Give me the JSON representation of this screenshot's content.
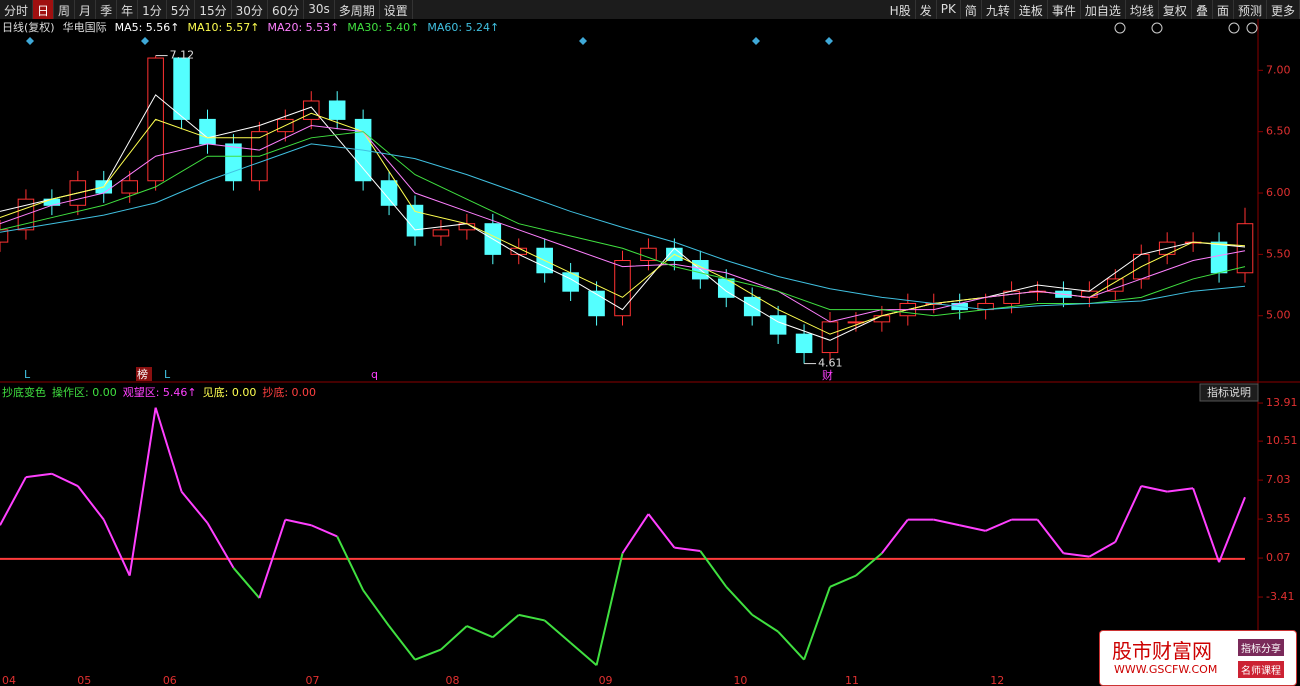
{
  "toolbar": {
    "left": [
      "分时",
      "日",
      "周",
      "月",
      "季",
      "年",
      "1分",
      "5分",
      "15分",
      "30分",
      "60分",
      "30s",
      "多周期",
      "设置"
    ],
    "right": [
      "H股",
      "发",
      "PK",
      "简",
      "九转",
      "连板",
      "事件",
      "加自选",
      "均线",
      "复权",
      "叠",
      "面",
      "预测",
      "更多"
    ]
  },
  "chart_data": [
    {
      "type": "candlestick",
      "period": "日线(复权)",
      "stock": "华电国际",
      "xlim": [
        0,
        48
      ],
      "xticks": [
        {
          "value": 0,
          "label": "04"
        },
        {
          "value": 2.9,
          "label": "05"
        },
        {
          "value": 6.2,
          "label": "06"
        },
        {
          "value": 11.7,
          "label": "07"
        },
        {
          "value": 17.1,
          "label": "08"
        },
        {
          "value": 23,
          "label": "09"
        },
        {
          "value": 28.2,
          "label": "10"
        },
        {
          "value": 32.5,
          "label": "11"
        },
        {
          "value": 38.1,
          "label": "12"
        }
      ],
      "ylim": [
        4.46,
        7.41
      ],
      "yticks": [
        {
          "value": 5,
          "label": "5.00"
        },
        {
          "value": 5.5,
          "label": "5.50"
        },
        {
          "value": 6,
          "label": "6.00"
        },
        {
          "value": 6.5,
          "label": "6.50"
        },
        {
          "value": 7,
          "label": "7.00"
        }
      ],
      "up_color": "#ff3232",
      "down_color": "#54ffff",
      "open": [
        5.6,
        5.7,
        5.95,
        5.9,
        6.1,
        6.0,
        6.1,
        7.1,
        6.6,
        6.4,
        6.1,
        6.5,
        6.6,
        6.75,
        6.6,
        6.1,
        5.9,
        5.65,
        5.7,
        5.75,
        5.5,
        5.55,
        5.35,
        5.2,
        5.0,
        5.45,
        5.55,
        5.45,
        5.3,
        5.15,
        5.0,
        4.85,
        4.7,
        4.95,
        4.95,
        5.0,
        5.1,
        5.1,
        5.05,
        5.1,
        5.2,
        5.2,
        5.15,
        5.2,
        5.3,
        5.5,
        5.6,
        5.6,
        5.35
      ],
      "high": [
        5.78,
        6.03,
        6.03,
        6.18,
        6.18,
        6.18,
        7.12,
        7.1,
        6.68,
        6.48,
        6.58,
        6.68,
        6.83,
        6.83,
        6.68,
        6.18,
        5.98,
        5.78,
        5.83,
        5.83,
        5.63,
        5.63,
        5.43,
        5.28,
        5.53,
        5.63,
        5.63,
        5.53,
        5.38,
        5.23,
        5.08,
        4.93,
        5.03,
        5.03,
        5.08,
        5.18,
        5.18,
        5.18,
        5.18,
        5.28,
        5.28,
        5.28,
        5.28,
        5.38,
        5.58,
        5.68,
        5.68,
        5.68,
        5.88
      ],
      "low": [
        5.52,
        5.62,
        5.82,
        5.82,
        5.92,
        5.92,
        6.02,
        6.52,
        6.32,
        6.02,
        6.02,
        6.42,
        6.52,
        6.52,
        6.02,
        5.82,
        5.57,
        5.57,
        5.62,
        5.42,
        5.42,
        5.27,
        5.12,
        4.92,
        4.92,
        5.37,
        5.37,
        5.22,
        5.07,
        4.92,
        4.77,
        4.61,
        4.62,
        4.87,
        4.87,
        4.92,
        5.02,
        4.97,
        4.97,
        5.02,
        5.12,
        5.07,
        5.07,
        5.12,
        5.22,
        5.42,
        5.52,
        5.27,
        5.27
      ],
      "close": [
        5.7,
        5.95,
        5.9,
        6.1,
        6.0,
        6.1,
        7.1,
        6.6,
        6.4,
        6.1,
        6.5,
        6.6,
        6.75,
        6.6,
        6.1,
        5.9,
        5.65,
        5.7,
        5.75,
        5.5,
        5.55,
        5.35,
        5.2,
        5.0,
        5.45,
        5.55,
        5.45,
        5.3,
        5.15,
        5.0,
        4.85,
        4.7,
        4.95,
        4.95,
        5.0,
        5.1,
        5.1,
        5.05,
        5.1,
        5.2,
        5.2,
        5.15,
        5.2,
        5.3,
        5.5,
        5.6,
        5.6,
        5.35,
        5.75
      ],
      "ma_x": [
        0,
        2,
        4,
        6,
        8,
        10,
        12,
        14,
        16,
        18,
        20,
        22,
        24,
        26,
        28,
        30,
        32,
        34,
        36,
        38,
        40,
        42,
        44,
        46,
        48
      ],
      "series": [
        {
          "name": "MA5: 5.56↑",
          "color": "#ffffff",
          "values": [
            5.85,
            5.95,
            6.05,
            6.8,
            6.45,
            6.55,
            6.7,
            6.2,
            5.7,
            5.75,
            5.5,
            5.3,
            5.05,
            5.55,
            5.2,
            4.95,
            4.8,
            5.0,
            5.1,
            5.15,
            5.25,
            5.2,
            5.5,
            5.6,
            5.56
          ]
        },
        {
          "name": "MA10: 5.57↑",
          "color": "#ffff50",
          "values": [
            5.8,
            5.95,
            6.05,
            6.6,
            6.45,
            6.45,
            6.65,
            6.5,
            5.85,
            5.75,
            5.55,
            5.35,
            5.15,
            5.5,
            5.3,
            5.05,
            4.85,
            5.0,
            5.1,
            5.15,
            5.2,
            5.15,
            5.4,
            5.6,
            5.57
          ]
        },
        {
          "name": "MA20: 5.53↑",
          "color": "#ff80ff",
          "values": [
            5.75,
            5.9,
            6.0,
            6.3,
            6.4,
            6.35,
            6.55,
            6.5,
            6.0,
            5.85,
            5.7,
            5.55,
            5.4,
            5.42,
            5.35,
            5.2,
            4.95,
            5.05,
            5.05,
            5.15,
            5.2,
            5.15,
            5.3,
            5.45,
            5.53
          ]
        },
        {
          "name": "MA30: 5.40↑",
          "color": "#40e040",
          "values": [
            5.7,
            5.8,
            5.9,
            6.05,
            6.3,
            6.3,
            6.45,
            6.5,
            6.15,
            5.95,
            5.75,
            5.65,
            5.55,
            5.4,
            5.3,
            5.2,
            5.05,
            5.05,
            5.0,
            5.05,
            5.1,
            5.1,
            5.15,
            5.3,
            5.4
          ]
        },
        {
          "name": "MA60: 5.24↑",
          "color": "#40c0e0",
          "values": [
            5.68,
            5.75,
            5.82,
            5.92,
            6.1,
            6.25,
            6.4,
            6.35,
            6.28,
            6.15,
            6.0,
            5.85,
            5.72,
            5.6,
            5.45,
            5.32,
            5.22,
            5.15,
            5.1,
            5.05,
            5.08,
            5.1,
            5.12,
            5.2,
            5.24
          ]
        }
      ],
      "annotations": [
        {
          "value": 7.12,
          "label": "7.12"
        },
        {
          "value": 4.61,
          "label": "4.61"
        }
      ],
      "markers": [
        "L",
        "榜",
        "L",
        "q",
        "财"
      ]
    },
    {
      "type": "oscillator",
      "title": "抄底变色",
      "legend": [
        {
          "label": "操作区: 0.00",
          "color": "#40e040"
        },
        {
          "label": "观望区: 5.46↑",
          "color": "#ff40ff"
        },
        {
          "label": "见底: 0.00",
          "color": "#ffff50"
        },
        {
          "label": "抄底: 0.00",
          "color": "#ff4040"
        }
      ],
      "button": "指标说明",
      "xlim": [
        0,
        48
      ],
      "ylim": [
        -10.46,
        14.36
      ],
      "yticks": [
        {
          "value": -3.41,
          "label": "-3.41"
        },
        0.07,
        3.55,
        7.03,
        10.51,
        13.91
      ],
      "zero_line": 0,
      "zero_color": "#ff3c3c",
      "above_color": "#ff40ff",
      "below_color": "#40e040",
      "values": [
        3.0,
        7.3,
        7.6,
        6.5,
        3.5,
        -1.5,
        13.5,
        6.0,
        3.2,
        -0.8,
        -3.5,
        3.5,
        3.0,
        2.0,
        -2.8,
        -6.0,
        -9.0,
        -8.1,
        -6.0,
        -7.0,
        -5.0,
        -5.5,
        -7.5,
        -9.5,
        0.5,
        4.0,
        1.0,
        0.7,
        -2.5,
        -5.0,
        -6.5,
        -9.0,
        -2.5,
        -1.5,
        0.5,
        3.5,
        3.5,
        3.0,
        2.5,
        3.5,
        3.5,
        0.5,
        0.2,
        1.5,
        6.5,
        6.0,
        6.3,
        -0.3,
        5.5
      ]
    }
  ],
  "watermark": {
    "title": "股市财富网",
    "url": "WWW.GSCFW.COM",
    "tags": [
      "指标分享",
      "名师课程"
    ]
  }
}
